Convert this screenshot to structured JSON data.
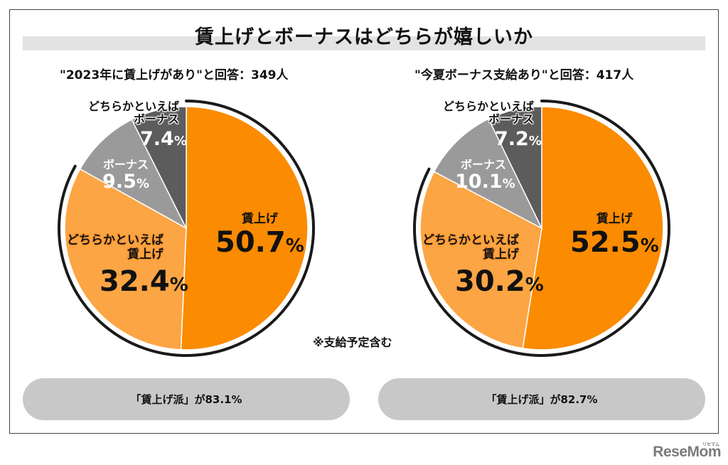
{
  "title": "賃上げとボーナスはどちらが嬉しいか",
  "note": "※支給予定含む",
  "logo": "ReseMom",
  "logo_small": "リセマム",
  "colors": {
    "wage": "#fb8b00",
    "lean_wage": "#fca544",
    "bonus": "#9a9a9a",
    "lean_bonus": "#5c5c5c",
    "arc": "#1a1a1a",
    "pill": "#c8c8c8"
  },
  "chart_data": [
    {
      "type": "pie",
      "title": "\"2023年に賃上げがあり\"と回答：349人",
      "summary": "「賃上げ派」が83.1%",
      "slices": [
        {
          "label_lines": [
            "賃上げ"
          ],
          "value": 50.7,
          "display": "50.7",
          "color": "#fb8b00"
        },
        {
          "label_lines": [
            "どちらかといえば",
            "賃上げ"
          ],
          "value": 32.4,
          "display": "32.4",
          "color": "#fca544"
        },
        {
          "label_lines": [
            "ボーナス"
          ],
          "value": 9.5,
          "display": "9.5",
          "color": "#9a9a9a"
        },
        {
          "label_lines": [
            "どちらかといえば",
            "ボーナス"
          ],
          "value": 7.4,
          "display": "7.4",
          "color": "#5c5c5c"
        }
      ],
      "unit": "%"
    },
    {
      "type": "pie",
      "title": "\"今夏ボーナス支給あり\"と回答：417人",
      "summary": "「賃上げ派」が82.7%",
      "slices": [
        {
          "label_lines": [
            "賃上げ"
          ],
          "value": 52.5,
          "display": "52.5",
          "color": "#fb8b00"
        },
        {
          "label_lines": [
            "どちらかといえば",
            "賃上げ"
          ],
          "value": 30.2,
          "display": "30.2",
          "color": "#fca544"
        },
        {
          "label_lines": [
            "ボーナス"
          ],
          "value": 10.1,
          "display": "10.1",
          "color": "#9a9a9a"
        },
        {
          "label_lines": [
            "どちらかといえば",
            "ボーナス"
          ],
          "value": 7.2,
          "display": "7.2",
          "color": "#5c5c5c"
        }
      ],
      "unit": "%"
    }
  ]
}
